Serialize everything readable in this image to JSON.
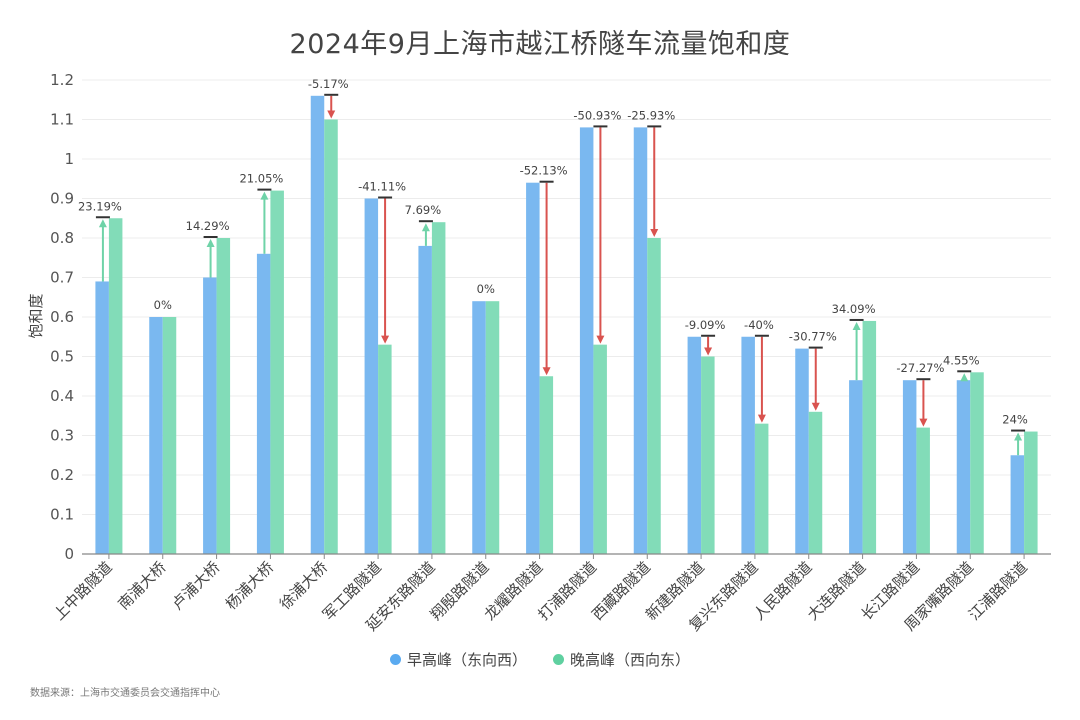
{
  "chart_data": {
    "type": "bar",
    "title": "2024年9月上海市越江桥隧车流量饱和度",
    "xlabel": "",
    "ylabel": "饱和度",
    "ylim": [
      0,
      1.2
    ],
    "yticks": [
      "0",
      "0.1",
      "0.2",
      "0.3",
      "0.4",
      "0.5",
      "0.6",
      "0.7",
      "0.8",
      "0.9",
      "1",
      "1.1",
      "1.2"
    ],
    "ytick_values": [
      0,
      0.1,
      0.2,
      0.3,
      0.4,
      0.5,
      0.6,
      0.7,
      0.8,
      0.9,
      1.0,
      1.1,
      1.2
    ],
    "grid": true,
    "legend_position": "bottom",
    "categories": [
      "上中路隧道",
      "南浦大桥",
      "卢浦大桥",
      "杨浦大桥",
      "徐浦大桥",
      "军工路隧道",
      "延安东路隧道",
      "翔殷路隧道",
      "龙耀路隧道",
      "打浦路隧道",
      "西藏路隧道",
      "新建路隧道",
      "复兴东路隧道",
      "人民路隧道",
      "大连路隧道",
      "长江路隧道",
      "周家嘴路隧道",
      "江浦路隧道"
    ],
    "series": [
      {
        "name": "早高峰（东向西）",
        "color": "#7ab8f0",
        "values": [
          0.69,
          0.6,
          0.7,
          0.76,
          1.16,
          0.9,
          0.78,
          0.64,
          0.94,
          1.08,
          1.08,
          0.55,
          0.55,
          0.52,
          0.44,
          0.44,
          0.44,
          0.25
        ]
      },
      {
        "name": "晚高峰（西向东）",
        "color": "#82dcb8",
        "values": [
          0.85,
          0.6,
          0.8,
          0.92,
          1.1,
          0.53,
          0.84,
          0.64,
          0.45,
          0.53,
          0.8,
          0.5,
          0.33,
          0.36,
          0.59,
          0.32,
          0.46,
          0.31
        ]
      }
    ],
    "change_labels": [
      "23.19%",
      "0%",
      "14.29%",
      "21.05%",
      "-5.17%",
      "-41.11%",
      "7.69%",
      "0%",
      "-52.13%",
      "-50.93%",
      "-25.93%",
      "-9.09%",
      "-40%",
      "-30.77%",
      "34.09%",
      "-27.27%",
      "4.55%",
      "24%"
    ],
    "arrow_colors": {
      "up": "#6fd3a8",
      "down": "#d9534f",
      "cap": "#333333"
    }
  },
  "legend": {
    "items": [
      {
        "label": "早高峰（东向西）",
        "color": "#5aaaf0"
      },
      {
        "label": "晚高峰（西向东）",
        "color": "#5fd0a0"
      }
    ]
  },
  "footer": {
    "source": "数据来源：上海市交通委员会交通指挥中心"
  }
}
